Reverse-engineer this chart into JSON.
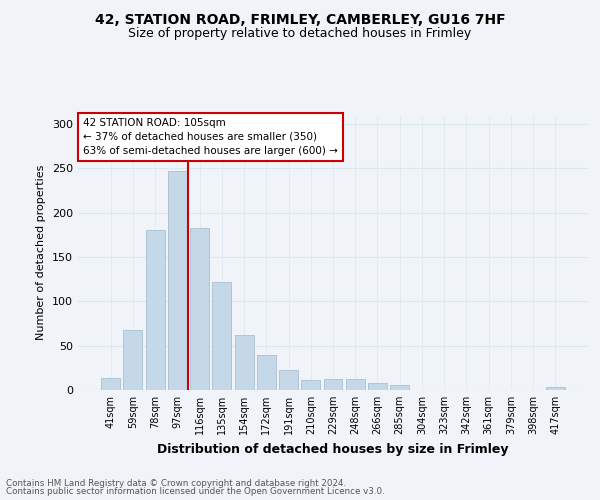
{
  "title_line1": "42, STATION ROAD, FRIMLEY, CAMBERLEY, GU16 7HF",
  "title_line2": "Size of property relative to detached houses in Frimley",
  "xlabel": "Distribution of detached houses by size in Frimley",
  "ylabel": "Number of detached properties",
  "categories": [
    "41sqm",
    "59sqm",
    "78sqm",
    "97sqm",
    "116sqm",
    "135sqm",
    "154sqm",
    "172sqm",
    "191sqm",
    "210sqm",
    "229sqm",
    "248sqm",
    "266sqm",
    "285sqm",
    "304sqm",
    "323sqm",
    "342sqm",
    "361sqm",
    "379sqm",
    "398sqm",
    "417sqm"
  ],
  "values": [
    14,
    68,
    180,
    247,
    183,
    122,
    62,
    40,
    22,
    11,
    12,
    12,
    8,
    6,
    0,
    0,
    0,
    0,
    0,
    0,
    3
  ],
  "bar_color": "#c5d8e8",
  "bar_edge_color": "#a0b8cc",
  "red_line_x": 3.5,
  "annotation_text": "42 STATION ROAD: 105sqm\n← 37% of detached houses are smaller (350)\n63% of semi-detached houses are larger (600) →",
  "ylim": [
    0,
    310
  ],
  "yticks": [
    0,
    50,
    100,
    150,
    200,
    250,
    300
  ],
  "grid_color": "#dce8f0",
  "background_color": "#f0f4f8",
  "plot_bg_color": "#f0f4f8",
  "footer_line1": "Contains HM Land Registry data © Crown copyright and database right 2024.",
  "footer_line2": "Contains public sector information licensed under the Open Government Licence v3.0.",
  "annotation_box_color": "#ffffff",
  "annotation_border_color": "#cc0000",
  "title1_fontsize": 10,
  "title2_fontsize": 9
}
